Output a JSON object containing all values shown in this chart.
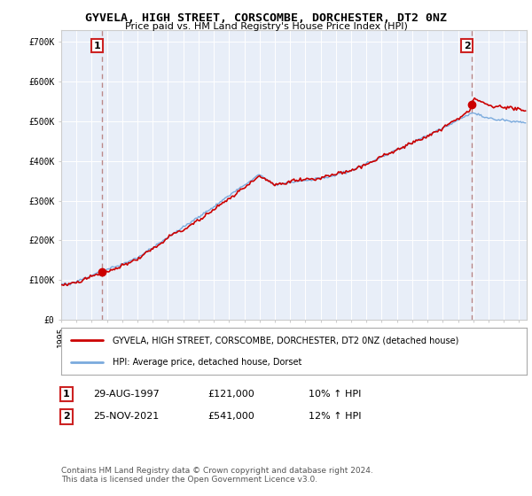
{
  "title": "GYVELA, HIGH STREET, CORSCOMBE, DORCHESTER, DT2 0NZ",
  "subtitle": "Price paid vs. HM Land Registry's House Price Index (HPI)",
  "legend_line1": "GYVELA, HIGH STREET, CORSCOMBE, DORCHESTER, DT2 0NZ (detached house)",
  "legend_line2": "HPI: Average price, detached house, Dorset",
  "annotation1_date": "29-AUG-1997",
  "annotation1_price": "£121,000",
  "annotation1_hpi": "10% ↑ HPI",
  "annotation2_date": "25-NOV-2021",
  "annotation2_price": "£541,000",
  "annotation2_hpi": "12% ↑ HPI",
  "footnote": "Contains HM Land Registry data © Crown copyright and database right 2024.\nThis data is licensed under the Open Government Licence v3.0.",
  "sale1_year": 1997.66,
  "sale1_value": 121000,
  "sale2_year": 2021.9,
  "sale2_value": 541000,
  "property_color": "#cc0000",
  "hpi_color": "#7aaadd",
  "vline_color": "#bb8888",
  "plot_bg_color": "#e8eef8",
  "ylim": [
    0,
    730000
  ],
  "yticks": [
    0,
    100000,
    200000,
    300000,
    400000,
    500000,
    600000,
    700000
  ],
  "ytick_labels": [
    "£0",
    "£100K",
    "£200K",
    "£300K",
    "£400K",
    "£500K",
    "£600K",
    "£700K"
  ],
  "xlim_start": 1995,
  "xlim_end": 2025.5
}
